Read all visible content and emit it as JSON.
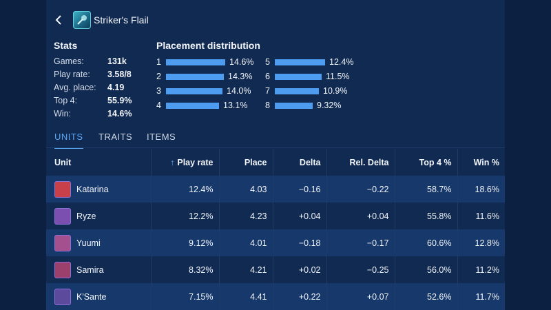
{
  "header": {
    "title": "Striker's Flail"
  },
  "stats": {
    "title": "Stats",
    "rows": [
      {
        "label": "Games:",
        "value": "131k"
      },
      {
        "label": "Play rate:",
        "value": "3.58/8"
      },
      {
        "label": "Avg. place:",
        "value": "4.19"
      },
      {
        "label": "Top 4:",
        "value": "55.9%"
      },
      {
        "label": "Win:",
        "value": "14.6%"
      }
    ]
  },
  "distribution": {
    "title": "Placement distribution",
    "items": [
      {
        "place": "1",
        "pct": "14.6%",
        "value": 14.6
      },
      {
        "place": "2",
        "pct": "14.3%",
        "value": 14.3
      },
      {
        "place": "3",
        "pct": "14.0%",
        "value": 14.0
      },
      {
        "place": "4",
        "pct": "13.1%",
        "value": 13.1
      },
      {
        "place": "5",
        "pct": "12.4%",
        "value": 12.4
      },
      {
        "place": "6",
        "pct": "11.5%",
        "value": 11.5
      },
      {
        "place": "7",
        "pct": "10.9%",
        "value": 10.9
      },
      {
        "place": "8",
        "pct": "9.32%",
        "value": 9.32
      }
    ]
  },
  "tabs": [
    {
      "label": "UNITS",
      "active": true
    },
    {
      "label": "TRAITS",
      "active": false
    },
    {
      "label": "ITEMS",
      "active": false
    }
  ],
  "table": {
    "headers": [
      "Unit",
      "Play rate",
      "Place",
      "Delta",
      "Rel. Delta",
      "Top 4 %",
      "Win %"
    ],
    "rows": [
      {
        "unit": "Katarina",
        "color": "#c8404a",
        "play_rate": "12.4%",
        "place": "4.03",
        "delta": "−0.16",
        "rel_delta": "−0.22",
        "top4": "58.7%",
        "win": "18.6%"
      },
      {
        "unit": "Ryze",
        "color": "#7a4fb0",
        "play_rate": "12.2%",
        "place": "4.23",
        "delta": "+0.04",
        "rel_delta": "+0.04",
        "top4": "55.8%",
        "win": "11.6%"
      },
      {
        "unit": "Yuumi",
        "color": "#a4508e",
        "play_rate": "9.12%",
        "place": "4.01",
        "delta": "−0.18",
        "rel_delta": "−0.17",
        "top4": "60.6%",
        "win": "12.8%"
      },
      {
        "unit": "Samira",
        "color": "#9b3f6d",
        "play_rate": "8.32%",
        "place": "4.21",
        "delta": "+0.02",
        "rel_delta": "−0.25",
        "top4": "56.0%",
        "win": "11.2%"
      },
      {
        "unit": "K'Sante",
        "color": "#5c4a9c",
        "play_rate": "7.15%",
        "place": "4.41",
        "delta": "+0.22",
        "rel_delta": "+0.07",
        "top4": "52.6%",
        "win": "11.7%"
      }
    ]
  }
}
